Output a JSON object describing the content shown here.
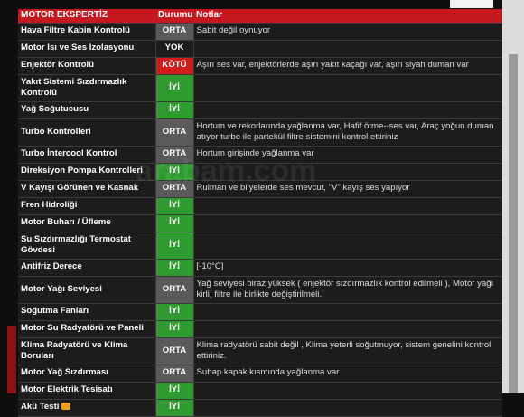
{
  "table": {
    "header": [
      "MOTOR EKSPERTİZ",
      "Durumu",
      "Notlar"
    ],
    "rows": [
      [
        "Hava Filtre Kabin Kontrolü",
        "ORTA",
        "Sabit değil oynuyor"
      ],
      [
        "Motor Isı ve Ses İzolasyonu",
        "YOK"
      ],
      [
        "Enjektör Kontrolü",
        "KÖTÜ",
        "Aşırı ses var, enjektörlerde aşırı yakıt kaçağı var, aşırı siyah duman var"
      ],
      [
        "Yakıt Sistemi Sızdırmazlık Kontrolü",
        "İYİ"
      ],
      [
        "Yağ Soğutucusu",
        "İYİ"
      ],
      [
        "Turbo Kontrolleri",
        "ORTA",
        "Hortum ve rekorlarında yağlanma var, Hafif ötme--ses var, Araç yoğun duman atıyor turbo ile partekül filtre sistemini kontrol ettiriniz"
      ],
      [
        "Turbo İntercool Kontrol",
        "ORTA",
        "Hortum girişinde yağlanma var"
      ],
      [
        "Direksiyon Pompa Kontrolleri",
        "İYİ"
      ],
      [
        "V Kayışı Görünen ve Kasnak",
        "ORTA",
        "Rulman ve bilyelerde ses mevcut, \"V\" kayış ses yapıyor"
      ],
      [
        "Fren Hidroliği",
        "İYİ"
      ],
      [
        "Motor Buharı / Üfleme",
        "İYİ"
      ],
      [
        "Su Sızdırmazlığı Termostat Gövdesi",
        "İYİ"
      ],
      [
        "Antifriz Derece",
        "İYİ",
        "[-10°C]"
      ],
      [
        "Motor Yağı Seviyesi",
        "ORTA",
        "Yağ seviyesi biraz yüksek ( enjektör sızdırmazlık kontrol edilmeli ), Motor yağı kirli, filtre ile birlikte değiştirilmeli."
      ],
      [
        "Soğutma Fanları",
        "İYİ"
      ],
      [
        "Motor Su Radyatörü ve Paneli",
        "İYİ"
      ],
      [
        "Klima Radyatörü ve Klima Boruları",
        "ORTA",
        "Klima radyatörü sabit değil , Klima yeterli soğutmuyor, sistem genelini kontrol ettiriniz."
      ],
      [
        "Motor Yağ Sızdırması",
        "ORTA",
        "Subap kapak kısmında yağlanma var"
      ],
      [
        "Motor Elektrik Tesisatı",
        "İYİ"
      ],
      [
        "Akü Testi",
        "İYİ"
      ]
    ]
  },
  "watermark": "arabam.com"
}
